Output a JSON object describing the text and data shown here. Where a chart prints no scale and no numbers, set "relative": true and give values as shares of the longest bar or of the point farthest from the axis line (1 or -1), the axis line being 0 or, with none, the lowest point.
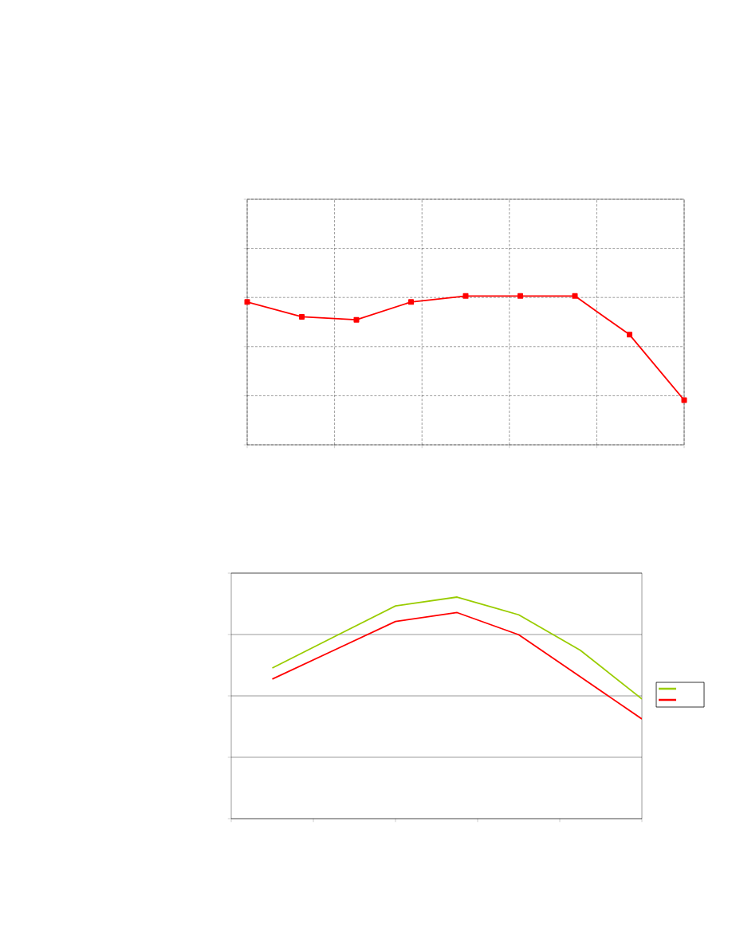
{
  "chart_data": [
    {
      "type": "line",
      "relative": true,
      "categories": [
        null,
        null,
        null,
        null,
        null,
        null,
        null,
        null,
        null
      ],
      "values": [
        0.96,
        0.86,
        0.84,
        0.96,
        1,
        1,
        1,
        0.74,
        0.3
      ],
      "color": "#ff0000",
      "marker": "square",
      "grid": true
    },
    {
      "type": "line",
      "relative": true,
      "categories": [
        null,
        null,
        null,
        null,
        null,
        null,
        null
      ],
      "series": [
        {
          "color": "#99cc00",
          "values": [
            0.68,
            0.82,
            0.96,
            1,
            0.92,
            0.76,
            0.54
          ]
        },
        {
          "color": "#ff0000",
          "values": [
            0.63,
            0.76,
            0.89,
            0.93,
            0.83,
            0.64,
            0.45
          ]
        }
      ],
      "marker": "none",
      "grid": "y"
    }
  ]
}
